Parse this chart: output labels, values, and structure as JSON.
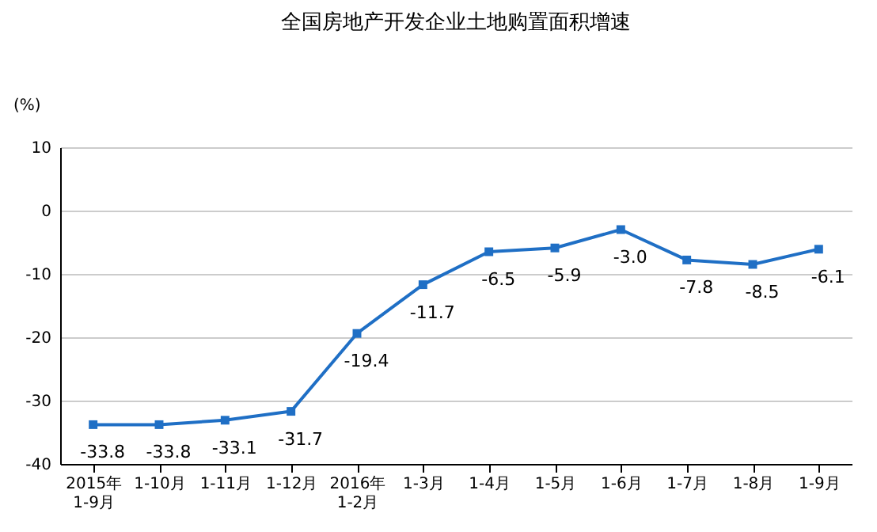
{
  "chart_data": {
    "type": "line",
    "title": "全国房地产开发企业土地购置面积增速",
    "ylabel": "(%)",
    "categories": [
      "2015年\n1-9月",
      "1-10月",
      "1-11月",
      "1-12月",
      "2016年\n1-2月",
      "1-3月",
      "1-4月",
      "1-5月",
      "1-6月",
      "1-7月",
      "1-8月",
      "1-9月"
    ],
    "series": [
      {
        "color": "#1f6fc5",
        "values": [
          -33.8,
          -33.8,
          -33.1,
          -31.7,
          -19.4,
          -11.7,
          -6.5,
          -5.9,
          -3.0,
          -7.8,
          -8.5,
          -6.1
        ],
        "value_labels": [
          "-33.8",
          "-33.8",
          "-33.1",
          "-31.7",
          "-19.4",
          "-11.7",
          "-6.5",
          "-5.9",
          "-3.0",
          "-7.8",
          "-8.5",
          "-6.1"
        ]
      }
    ],
    "ylim": [
      -40,
      10
    ],
    "yticks": [
      -40,
      -30,
      -20,
      -10,
      0,
      10
    ],
    "grid": "y",
    "marker": "square",
    "line_style": "solid",
    "data_labels": true
  }
}
